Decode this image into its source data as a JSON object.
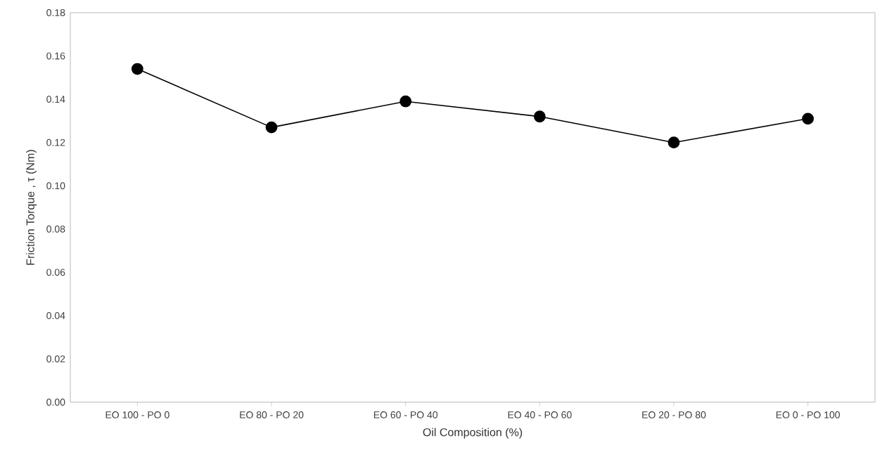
{
  "chart_data": {
    "type": "line",
    "xlabel": "Oil Composition (%)",
    "ylabel": "Friction Torque , τ (Nm)",
    "categories": [
      "EO 100 - PO 0",
      "EO 80 - PO 20",
      "EO 60 - PO 40",
      "EO 40 - PO 60",
      "EO 20 - PO 80",
      "EO 0 - PO 100"
    ],
    "series": [
      {
        "color": "#000000",
        "values": [
          0.154,
          0.127,
          0.139,
          0.132,
          0.12,
          0.131
        ]
      }
    ],
    "ylim": [
      0,
      0.18
    ],
    "yticks": [
      {
        "value": 0,
        "label": "0.00"
      },
      {
        "value": 0.02,
        "label": "0.02"
      },
      {
        "value": 0.04,
        "label": "0.04"
      },
      {
        "value": 0.06,
        "label": "0.06"
      },
      {
        "value": 0.08,
        "label": "0.08"
      },
      {
        "value": 0.1,
        "label": "0.10"
      },
      {
        "value": 0.12,
        "label": "0.12"
      },
      {
        "value": 0.14,
        "label": "0.14"
      },
      {
        "value": 0.16,
        "label": "0.16"
      },
      {
        "value": 0.18,
        "label": "0.18"
      }
    ],
    "marker": "circle",
    "line_style": "solid",
    "grid": false
  }
}
